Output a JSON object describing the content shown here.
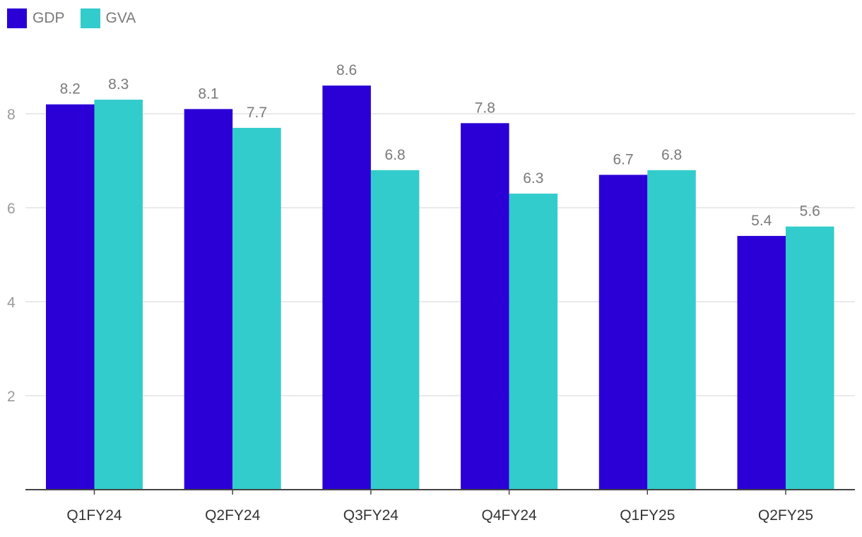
{
  "chart_data": {
    "type": "bar",
    "categories": [
      "Q1FY24",
      "Q2FY24",
      "Q3FY24",
      "Q4FY24",
      "Q1FY25",
      "Q2FY25"
    ],
    "series": [
      {
        "name": "GDP",
        "color": "#2a00d6",
        "values": [
          8.2,
          8.1,
          8.6,
          7.8,
          6.7,
          5.4
        ]
      },
      {
        "name": "GVA",
        "color": "#33cccc",
        "values": [
          8.3,
          7.7,
          6.8,
          6.3,
          6.8,
          5.6
        ]
      }
    ],
    "yticks": [
      2,
      4,
      6,
      8
    ],
    "ylim": [
      0,
      9.5
    ],
    "title": "",
    "xlabel": "",
    "ylabel": "",
    "grid": true,
    "legend_position": "top-left"
  }
}
